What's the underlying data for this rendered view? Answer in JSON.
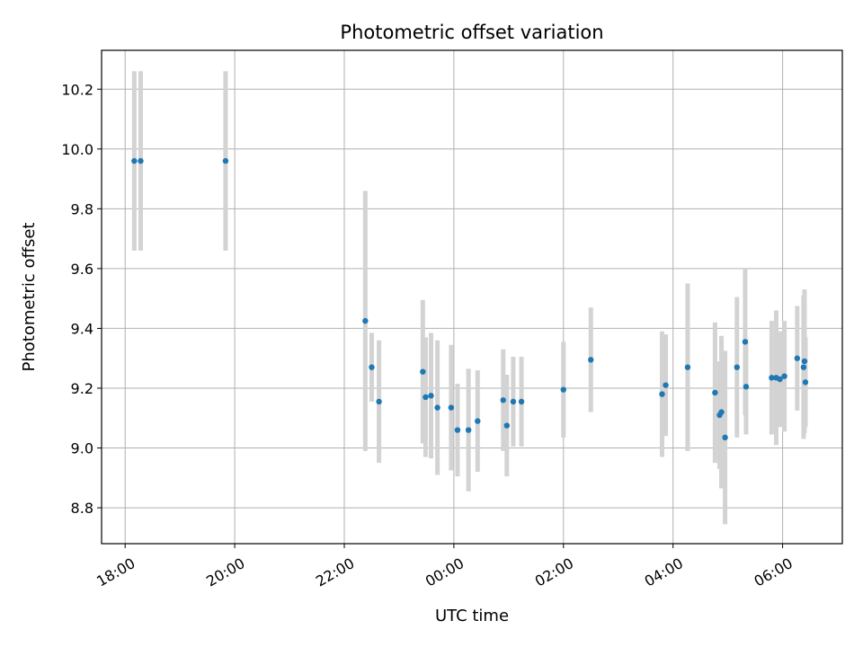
{
  "chart_data": {
    "type": "scatter",
    "title": "Photometric offset variation",
    "xlabel": "UTC time",
    "ylabel": "Photometric offset",
    "grid": true,
    "x_ticks": [
      "18:00",
      "20:00",
      "22:00",
      "00:00",
      "02:00",
      "04:00",
      "06:00"
    ],
    "y_ticks": [
      "8.8",
      "9.0",
      "9.2",
      "9.4",
      "9.6",
      "9.8",
      "10.0",
      "10.2"
    ],
    "ylim": [
      8.68,
      10.33
    ],
    "xlim_hours": [
      17.57,
      31.09
    ],
    "x_tick_hours": [
      18,
      20,
      22,
      24,
      26,
      28,
      30
    ],
    "y_tick_values": [
      8.8,
      9.0,
      9.2,
      9.4,
      9.6,
      9.8,
      10.0,
      10.2
    ],
    "point_color": "#1f77b4",
    "errorbar_color": "#d3d3d3",
    "points": [
      {
        "x": "18:10",
        "y": 9.96,
        "err": 0.3
      },
      {
        "x": "18:17",
        "y": 9.96,
        "err": 0.3
      },
      {
        "x": "19:50",
        "y": 9.96,
        "err": 0.3
      },
      {
        "x": "22:23",
        "y": 9.425,
        "err": 0.435
      },
      {
        "x": "22:30",
        "y": 9.27,
        "err": 0.115
      },
      {
        "x": "22:38",
        "y": 9.155,
        "err": 0.205
      },
      {
        "x": "23:26",
        "y": 9.255,
        "err": 0.24
      },
      {
        "x": "23:29",
        "y": 9.17,
        "err": 0.2
      },
      {
        "x": "23:35",
        "y": 9.175,
        "err": 0.21
      },
      {
        "x": "23:42",
        "y": 9.135,
        "err": 0.225
      },
      {
        "x": "23:57",
        "y": 9.135,
        "err": 0.21
      },
      {
        "x": "00:04",
        "y": 9.06,
        "err": 0.155
      },
      {
        "x": "00:16",
        "y": 9.06,
        "err": 0.205
      },
      {
        "x": "00:26",
        "y": 9.09,
        "err": 0.17
      },
      {
        "x": "00:54",
        "y": 9.16,
        "err": 0.17
      },
      {
        "x": "00:58",
        "y": 9.075,
        "err": 0.17
      },
      {
        "x": "01:05",
        "y": 9.155,
        "err": 0.15
      },
      {
        "x": "01:14",
        "y": 9.155,
        "err": 0.15
      },
      {
        "x": "02:00",
        "y": 9.195,
        "err": 0.16
      },
      {
        "x": "02:30",
        "y": 9.295,
        "err": 0.175
      },
      {
        "x": "03:48",
        "y": 9.18,
        "err": 0.21
      },
      {
        "x": "03:52",
        "y": 9.21,
        "err": 0.17
      },
      {
        "x": "04:16",
        "y": 9.27,
        "err": 0.28
      },
      {
        "x": "04:46",
        "y": 9.185,
        "err": 0.235
      },
      {
        "x": "04:51",
        "y": 9.11,
        "err": 0.18
      },
      {
        "x": "04:53",
        "y": 9.12,
        "err": 0.255
      },
      {
        "x": "04:57",
        "y": 9.035,
        "err": 0.29
      },
      {
        "x": "05:10",
        "y": 9.27,
        "err": 0.235
      },
      {
        "x": "05:19",
        "y": 9.355,
        "err": 0.245
      },
      {
        "x": "05:20",
        "y": 9.205,
        "err": 0.16
      },
      {
        "x": "05:48",
        "y": 9.235,
        "err": 0.19
      },
      {
        "x": "05:53",
        "y": 9.235,
        "err": 0.225
      },
      {
        "x": "05:57",
        "y": 9.23,
        "err": 0.16
      },
      {
        "x": "06:02",
        "y": 9.24,
        "err": 0.185
      },
      {
        "x": "06:16",
        "y": 9.3,
        "err": 0.175
      },
      {
        "x": "06:23",
        "y": 9.27,
        "err": 0.24
      },
      {
        "x": "06:24",
        "y": 9.29,
        "err": 0.24
      },
      {
        "x": "06:25",
        "y": 9.22,
        "err": 0.15
      }
    ]
  }
}
